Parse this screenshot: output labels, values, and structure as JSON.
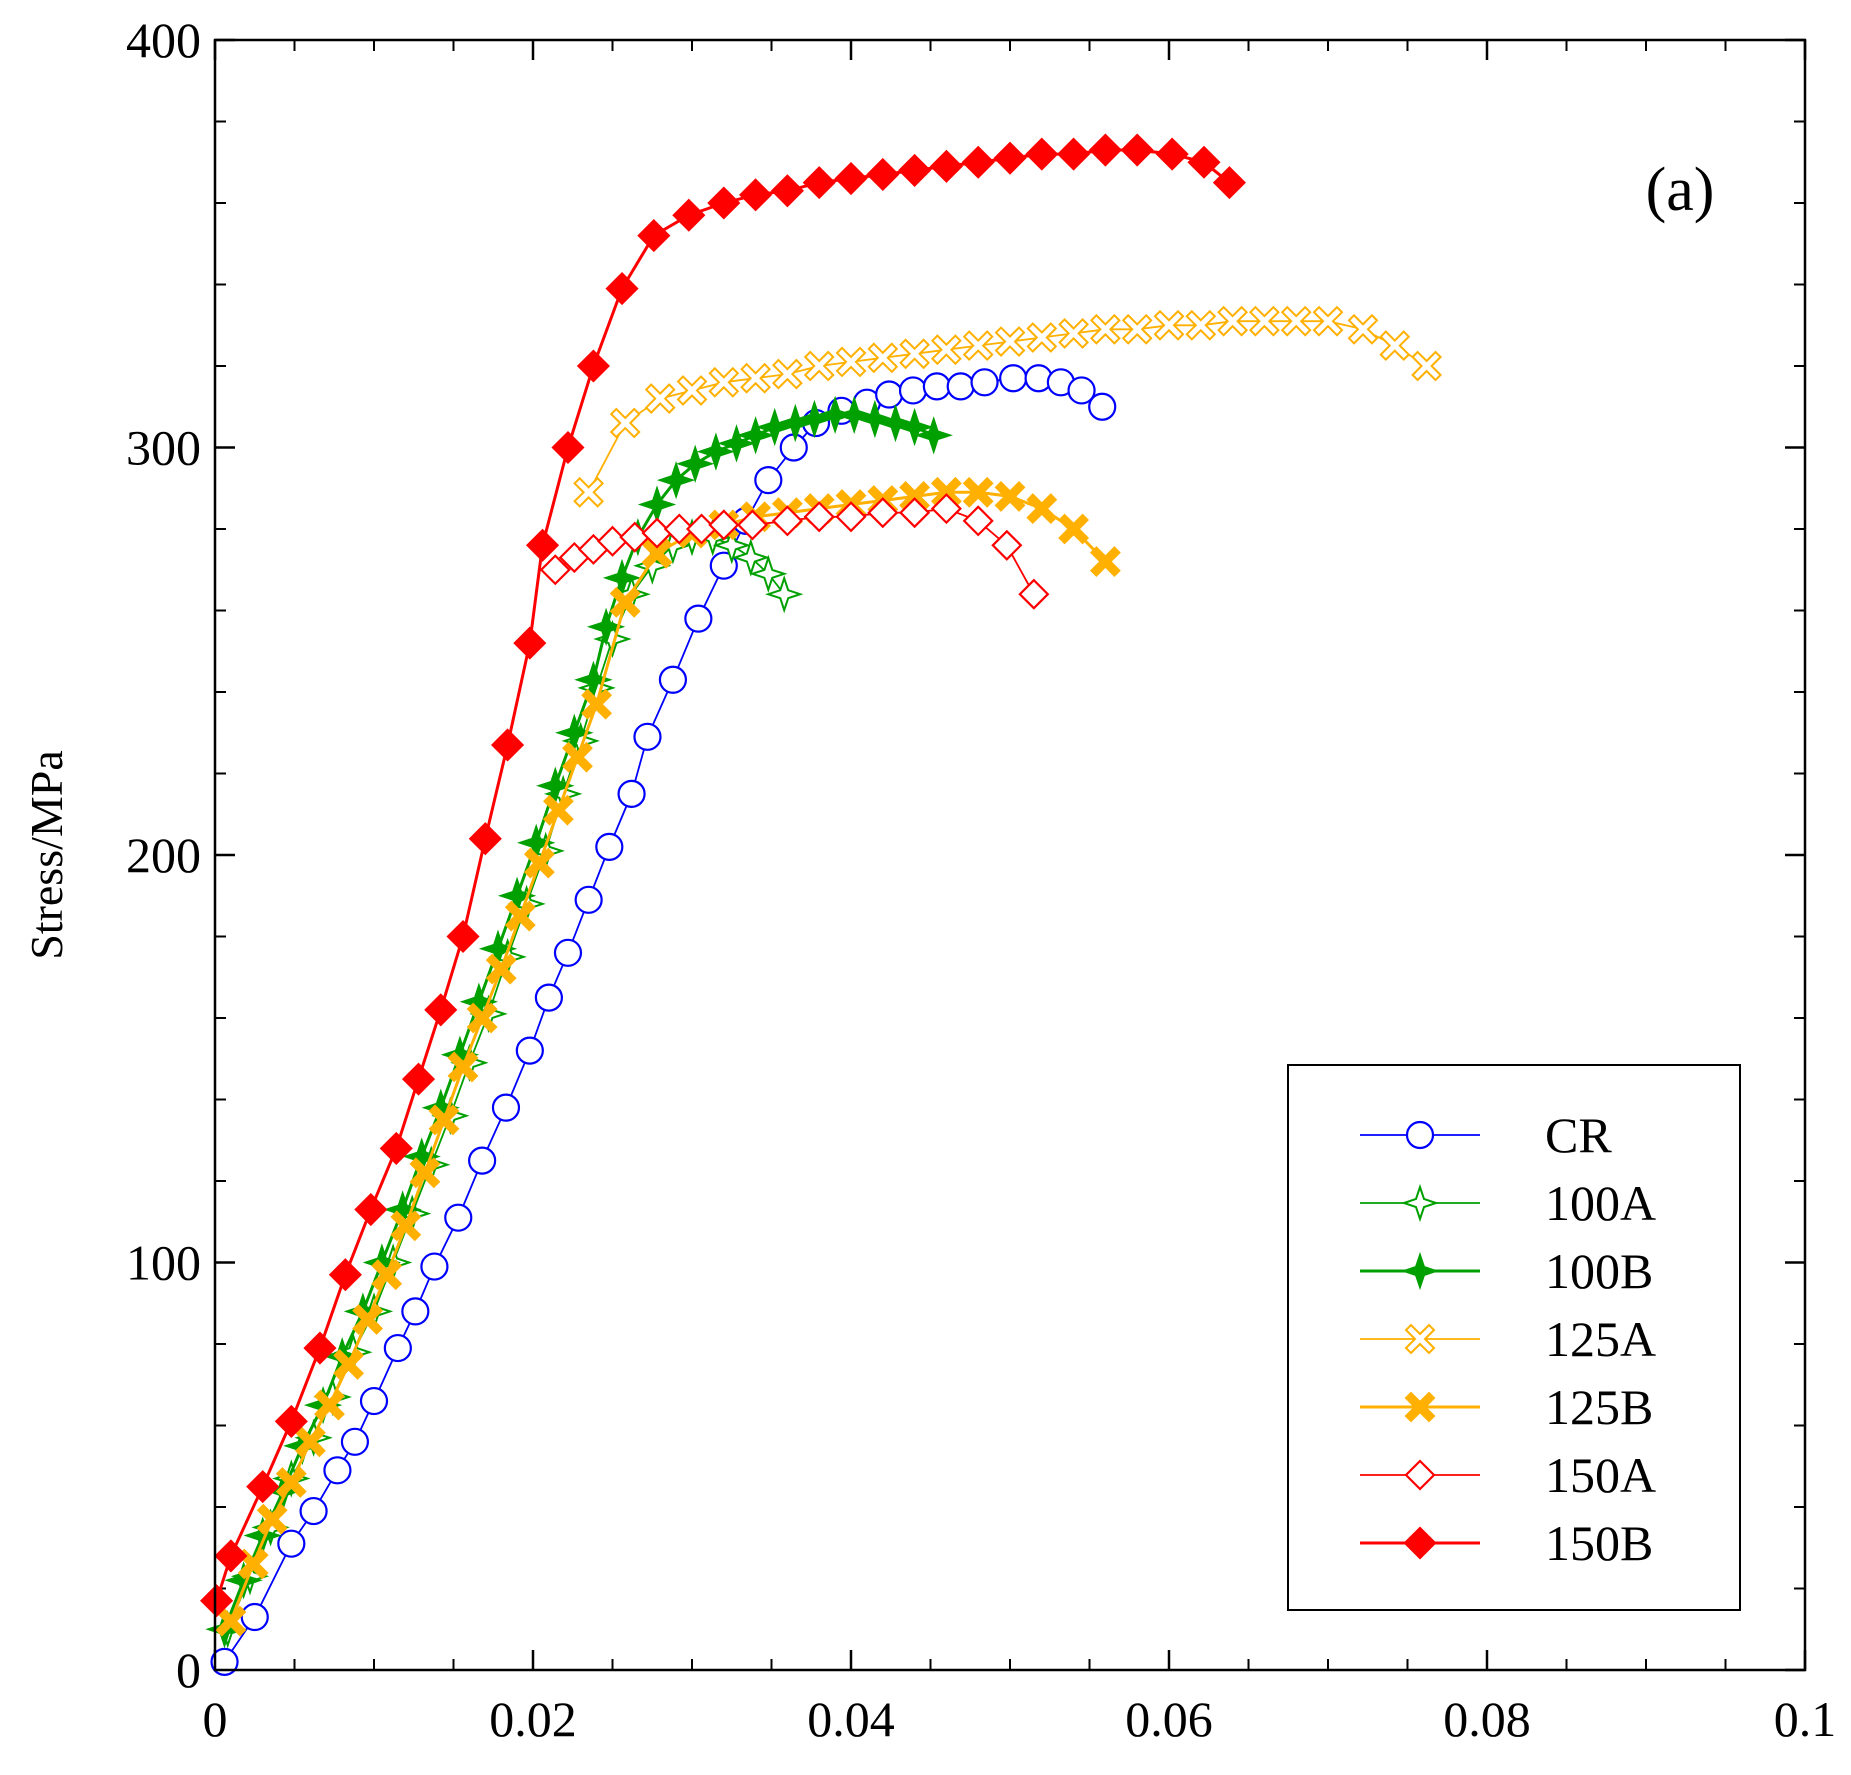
{
  "chart_data": {
    "type": "line",
    "title": "",
    "panel_label": "(a)",
    "xlabel": "",
    "ylabel": "Stress/MPa",
    "xlim": [
      0,
      0.1
    ],
    "ylim": [
      0,
      400
    ],
    "xticks": [
      0,
      0.02,
      0.04,
      0.06,
      0.08,
      0.1
    ],
    "xtick_labels": [
      "0",
      "0.02",
      "0.04",
      "0.06",
      "0.08",
      "0.1"
    ],
    "yticks": [
      0,
      100,
      200,
      300,
      400
    ],
    "ytick_labels": [
      "0",
      "100",
      "200",
      "300",
      "400"
    ],
    "grid": false,
    "legend_position": "bottom-right",
    "series": [
      {
        "name": "CR",
        "color": "#0000ff",
        "marker": "circle-open",
        "x": [
          0.0006,
          0.0025,
          0.0048,
          0.0062,
          0.0077,
          0.0088,
          0.01,
          0.0115,
          0.0126,
          0.0138,
          0.0153,
          0.0168,
          0.0183,
          0.0198,
          0.021,
          0.0222,
          0.0235,
          0.0248,
          0.0262,
          0.0272,
          0.0288,
          0.0304,
          0.032,
          0.0334,
          0.0348,
          0.0364,
          0.0378,
          0.0394,
          0.041,
          0.0424,
          0.0439,
          0.0454,
          0.0469,
          0.0484,
          0.0502,
          0.0518,
          0.0532,
          0.0545,
          0.0558
        ],
        "y": [
          2,
          13,
          31,
          39,
          49,
          56,
          66,
          79,
          88,
          99,
          111,
          125,
          138,
          152,
          165,
          176,
          189,
          202,
          215,
          229,
          243,
          258,
          271,
          282,
          292,
          300,
          306,
          309,
          311,
          313,
          314,
          315,
          315,
          316,
          317,
          317,
          316,
          314,
          310
        ]
      },
      {
        "name": "100A",
        "color": "#00a000",
        "marker": "star4-open",
        "x": [
          0.0008,
          0.0022,
          0.0035,
          0.0048,
          0.0062,
          0.0074,
          0.0087,
          0.01,
          0.0112,
          0.0124,
          0.0136,
          0.0148,
          0.016,
          0.0172,
          0.0184,
          0.0196,
          0.0208,
          0.0219,
          0.023,
          0.024,
          0.025,
          0.0262,
          0.0275,
          0.0288,
          0.03,
          0.0313,
          0.0325,
          0.0337,
          0.0348,
          0.0358
        ],
        "y": [
          10,
          23,
          35,
          47,
          57,
          67,
          78,
          88,
          100,
          112,
          124,
          136,
          149,
          161,
          175,
          188,
          201,
          215,
          228,
          241,
          253,
          264,
          271,
          276,
          278,
          278,
          276,
          273,
          269,
          264
        ]
      },
      {
        "name": "100B",
        "color": "#00a000",
        "marker": "star4-filled",
        "x": [
          0.0006,
          0.0018,
          0.003,
          0.0043,
          0.0055,
          0.0068,
          0.008,
          0.0093,
          0.0105,
          0.0118,
          0.013,
          0.0142,
          0.0154,
          0.0166,
          0.0178,
          0.019,
          0.0202,
          0.0214,
          0.0226,
          0.0238,
          0.0246,
          0.0256,
          0.0266,
          0.0278,
          0.029,
          0.0302,
          0.0315,
          0.0328,
          0.034,
          0.0352,
          0.0365,
          0.0377,
          0.039,
          0.0402,
          0.0415,
          0.0428,
          0.044,
          0.0452
        ],
        "y": [
          10,
          22,
          33,
          44,
          55,
          65,
          77,
          88,
          100,
          113,
          126,
          138,
          151,
          164,
          177,
          190,
          203,
          217,
          230,
          243,
          256,
          268,
          278,
          286,
          292,
          296,
          299,
          301,
          303,
          305,
          306,
          307,
          308,
          308,
          307,
          306,
          305,
          303
        ]
      },
      {
        "name": "125A",
        "color": "#ffb000",
        "marker": "x-open",
        "x": [
          0.0235,
          0.0258,
          0.028,
          0.03,
          0.032,
          0.034,
          0.036,
          0.038,
          0.04,
          0.042,
          0.044,
          0.046,
          0.048,
          0.05,
          0.052,
          0.054,
          0.056,
          0.058,
          0.06,
          0.062,
          0.064,
          0.066,
          0.068,
          0.07,
          0.0722,
          0.0742,
          0.0762
        ],
        "y": [
          289,
          306,
          312,
          314,
          316,
          317,
          318,
          320,
          321,
          322,
          323,
          324,
          325,
          326,
          327,
          328,
          329,
          329,
          330,
          330,
          331,
          331,
          331,
          331,
          329,
          325,
          320
        ]
      },
      {
        "name": "125B",
        "color": "#ffb000",
        "marker": "x-filled",
        "x": [
          0.001,
          0.0024,
          0.0036,
          0.0048,
          0.006,
          0.0072,
          0.0084,
          0.0096,
          0.0108,
          0.012,
          0.0132,
          0.0144,
          0.0156,
          0.0168,
          0.018,
          0.0192,
          0.0204,
          0.0216,
          0.0228,
          0.024,
          0.0258,
          0.0278,
          0.03,
          0.032,
          0.034,
          0.036,
          0.038,
          0.04,
          0.042,
          0.044,
          0.046,
          0.048,
          0.05,
          0.052,
          0.054,
          0.056
        ],
        "y": [
          12,
          26,
          37,
          46,
          56,
          65,
          75,
          86,
          97,
          109,
          122,
          135,
          148,
          160,
          172,
          185,
          198,
          211,
          224,
          237,
          262,
          274,
          279,
          281,
          283,
          284,
          285,
          286,
          287,
          288,
          289,
          289,
          288,
          285,
          280,
          272
        ]
      },
      {
        "name": "150A",
        "color": "#ff0000",
        "marker": "diamond-open",
        "x": [
          0.0214,
          0.0226,
          0.0238,
          0.025,
          0.0264,
          0.0278,
          0.0292,
          0.0306,
          0.032,
          0.0338,
          0.036,
          0.038,
          0.04,
          0.042,
          0.044,
          0.046,
          0.048,
          0.0498,
          0.0515
        ],
        "y": [
          270,
          273,
          275,
          277,
          278,
          279,
          280,
          280,
          281,
          281,
          282,
          283,
          283,
          284,
          284,
          285,
          282,
          276,
          264
        ]
      },
      {
        "name": "150B",
        "color": "#ff0000",
        "marker": "diamond-filled",
        "x": [
          0.0001,
          0.001,
          0.003,
          0.0048,
          0.0066,
          0.0082,
          0.0098,
          0.0114,
          0.0128,
          0.0142,
          0.0156,
          0.017,
          0.0184,
          0.0198,
          0.0206,
          0.0222,
          0.0238,
          0.0256,
          0.0276,
          0.0298,
          0.032,
          0.034,
          0.036,
          0.038,
          0.04,
          0.042,
          0.044,
          0.046,
          0.048,
          0.05,
          0.052,
          0.054,
          0.056,
          0.058,
          0.0602,
          0.0622,
          0.0638
        ],
        "y": [
          17,
          28,
          45,
          61,
          79,
          97,
          113,
          128,
          145,
          162,
          180,
          204,
          227,
          252,
          276,
          300,
          320,
          339,
          352,
          357,
          360,
          362,
          363,
          365,
          366,
          367,
          368,
          369,
          370,
          371,
          372,
          372,
          373,
          373,
          372,
          370,
          365
        ]
      }
    ]
  }
}
